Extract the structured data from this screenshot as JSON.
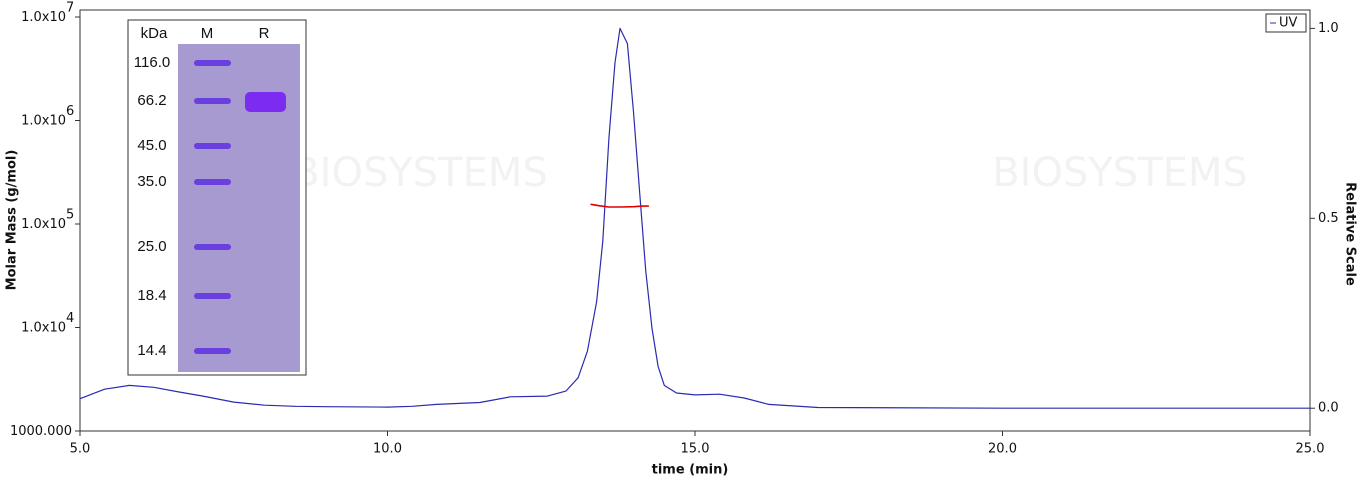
{
  "chart_data": {
    "type": "line",
    "xlabel": "time (min)",
    "ylabel": "Molar Mass (g/mol)",
    "y2label": "Relative Scale",
    "watermark": "BIOSYSTEMS",
    "xlim": [
      5,
      25
    ],
    "xticks": [
      {
        "value": 5,
        "label": "5.0"
      },
      {
        "value": 10,
        "label": "10.0"
      },
      {
        "value": 15,
        "label": "15.0"
      },
      {
        "value": 20,
        "label": "20.0"
      },
      {
        "value": 25,
        "label": "25.0"
      }
    ],
    "ylog": true,
    "ylim": [
      1000,
      10000000
    ],
    "yticks": [
      {
        "value": 1000,
        "label": "1000.000"
      },
      {
        "value": 10000,
        "label": "1.0x10",
        "sup": "4"
      },
      {
        "value": 100000,
        "label": "1.0x10",
        "sup": "5"
      },
      {
        "value": 1000000,
        "label": "1.0x10",
        "sup": "6"
      },
      {
        "value": 10000000,
        "label": "1.0x10",
        "sup": "7"
      }
    ],
    "y2lim": [
      -0.06,
      1.03
    ],
    "y2ticks": [
      {
        "value": 0,
        "label": "0.0"
      },
      {
        "value": 0.5,
        "label": "0.5"
      },
      {
        "value": 1,
        "label": "1.0"
      }
    ],
    "legend": "top-right",
    "series": [
      {
        "name": "UV",
        "color": "#2b2bb0",
        "axis": "y2",
        "x": [
          5.0,
          5.4,
          5.8,
          6.2,
          6.6,
          7.0,
          7.5,
          8.0,
          8.5,
          9.0,
          10.0,
          10.4,
          10.8,
          11.5,
          12.0,
          12.6,
          12.9,
          13.1,
          13.25,
          13.4,
          13.5,
          13.6,
          13.7,
          13.78,
          13.9,
          14.0,
          14.1,
          14.2,
          14.3,
          14.4,
          14.5,
          14.7,
          15.0,
          15.4,
          15.8,
          16.2,
          17.0,
          20.0,
          25.0
        ],
        "values": [
          0.025,
          0.05,
          0.06,
          0.055,
          0.043,
          0.032,
          0.016,
          0.008,
          0.005,
          0.004,
          0.003,
          0.005,
          0.01,
          0.015,
          0.03,
          0.032,
          0.045,
          0.08,
          0.15,
          0.28,
          0.44,
          0.71,
          0.91,
          1.0,
          0.96,
          0.78,
          0.57,
          0.36,
          0.21,
          0.11,
          0.06,
          0.04,
          0.035,
          0.037,
          0.027,
          0.01,
          0.002,
          0.0,
          0.0
        ]
      },
      {
        "color": "#e00000",
        "axis": "y",
        "x": [
          13.3,
          13.45,
          13.6,
          13.8,
          14.0,
          14.15,
          14.25
        ],
        "values": [
          155000,
          150000,
          146000,
          146000,
          147000,
          149000,
          149000
        ]
      }
    ],
    "gel": {
      "headers": [
        "kDa",
        "M",
        "R"
      ],
      "markers": [
        "116.0",
        "66.2",
        "45.0",
        "35.0",
        "25.0",
        "18.4",
        "14.4"
      ]
    }
  }
}
